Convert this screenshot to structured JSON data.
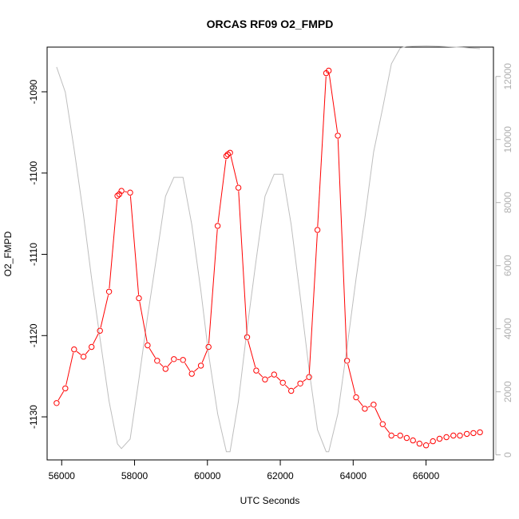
{
  "chart_data": {
    "type": "line",
    "title": "ORCAS RF09 O2_FMPD",
    "xlabel": "UTC Seconds",
    "ylabel": "O2_FMPD",
    "xlim": [
      55600,
      67850
    ],
    "ylim": [
      -1135.3,
      -1084.5
    ],
    "y2lim": [
      -160,
      12930
    ],
    "x_ticks": [
      56000,
      58000,
      60000,
      62000,
      64000,
      66000
    ],
    "y_ticks": [
      -1130,
      -1120,
      -1110,
      -1100,
      -1090
    ],
    "y2_ticks": [
      0,
      2000,
      4000,
      6000,
      8000,
      10000,
      12000
    ],
    "colors": {
      "primary": "#ff0000",
      "secondary": "#bebebe",
      "axis": "#000000",
      "right_axis": "#b0b0b0"
    },
    "series": [
      {
        "axis": "left",
        "style": "line+points",
        "x": [
          55860,
          56100,
          56340,
          56600,
          56820,
          57050,
          57300,
          57530,
          57580,
          57640,
          57880,
          58120,
          58360,
          58620,
          58850,
          59080,
          59330,
          59570,
          59820,
          60030,
          60280,
          60520,
          60560,
          60620,
          60850,
          61090,
          61340,
          61580,
          61830,
          62070,
          62300,
          62550,
          62790,
          63020,
          63260,
          63330,
          63580,
          63830,
          64080,
          64320,
          64560,
          64810,
          65050,
          65290,
          65470,
          65640,
          65820,
          66000,
          66190,
          66370,
          66560,
          66750,
          66930,
          67120,
          67300,
          67480
        ],
        "y": [
          -1128.3,
          -1126.5,
          -1121.7,
          -1122.6,
          -1121.4,
          -1119.4,
          -1114.6,
          -1102.8,
          -1102.6,
          -1102.2,
          -1102.4,
          -1115.4,
          -1121.2,
          -1123.1,
          -1124.1,
          -1122.9,
          -1123.0,
          -1124.7,
          -1123.7,
          -1121.4,
          -1106.5,
          -1097.9,
          -1097.7,
          -1097.5,
          -1101.8,
          -1120.2,
          -1124.3,
          -1125.4,
          -1124.8,
          -1125.8,
          -1126.8,
          -1125.9,
          -1125.1,
          -1107.0,
          -1087.7,
          -1087.4,
          -1095.4,
          -1123.1,
          -1127.6,
          -1129.0,
          -1128.5,
          -1130.9,
          -1132.3,
          -1132.3,
          -1132.6,
          -1132.9,
          -1133.3,
          -1133.5,
          -1133.0,
          -1132.7,
          -1132.5,
          -1132.3,
          -1132.3,
          -1132.1,
          -1132.0,
          -1131.9
        ]
      },
      {
        "axis": "right",
        "style": "line",
        "x": [
          55860,
          56100,
          56340,
          56600,
          56820,
          57050,
          57300,
          57530,
          57640,
          57880,
          58120,
          58360,
          58620,
          58850,
          59080,
          59330,
          59570,
          59820,
          60030,
          60280,
          60520,
          60620,
          60850,
          61090,
          61340,
          61580,
          61830,
          62070,
          62300,
          62550,
          62790,
          63020,
          63260,
          63330,
          63580,
          63830,
          64080,
          64320,
          64560,
          64810,
          65050,
          65290,
          65470,
          66000,
          66500,
          67000,
          67480
        ],
        "y": [
          12300,
          11500,
          9700,
          7600,
          5600,
          3700,
          1700,
          350,
          200,
          500,
          2400,
          4400,
          6400,
          8200,
          8800,
          8800,
          7300,
          5200,
          3200,
          1300,
          100,
          100,
          1700,
          4000,
          6200,
          8200,
          8900,
          8900,
          7300,
          5000,
          2700,
          800,
          100,
          100,
          1300,
          3400,
          5600,
          7500,
          9600,
          11000,
          12400,
          12900,
          12950,
          12970,
          12950,
          12920,
          12880
        ]
      }
    ]
  }
}
